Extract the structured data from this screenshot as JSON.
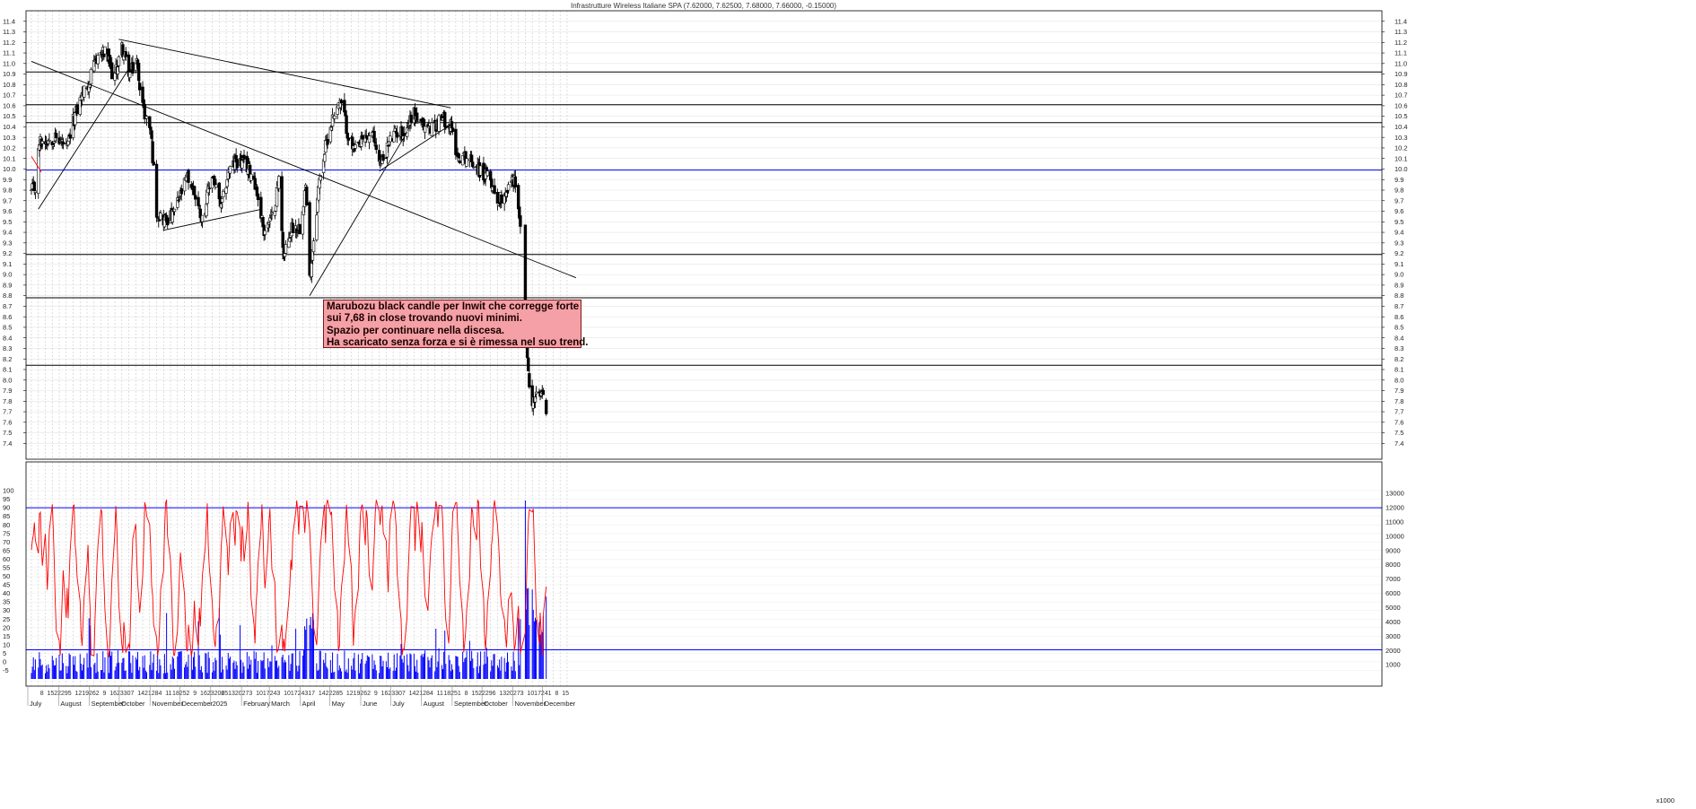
{
  "chart_data": [
    {
      "type": "candlestick",
      "title": "Infrastrutture Wireless Italiane SPA (7.62000, 7.62500, 7.68000, 7.66000, -0.15000)",
      "ylim": [
        7.25,
        11.5
      ],
      "y_ticks": [
        "7.4",
        "7.5",
        "7.6",
        "7.7",
        "7.8",
        "7.9",
        "8.0",
        "8.1",
        "8.2",
        "8.3",
        "8.4",
        "8.5",
        "8.6",
        "8.7",
        "8.8",
        "8.9",
        "9.0",
        "9.1",
        "9.2",
        "9.3",
        "9.4",
        "9.5",
        "9.6",
        "9.7",
        "9.8",
        "9.9",
        "10.0",
        "10.1",
        "10.2",
        "10.3",
        "10.4",
        "10.5",
        "10.6",
        "10.7",
        "10.8",
        "10.9",
        "11.0",
        "11.1",
        "11.2",
        "11.3",
        "11.4"
      ],
      "grid": true,
      "horizontal_levels": [
        {
          "value": 10.92,
          "color": "#000000"
        },
        {
          "value": 10.61,
          "color": "#000000"
        },
        {
          "value": 10.44,
          "color": "#000000"
        },
        {
          "value": 9.99,
          "color": "#0000ff"
        },
        {
          "value": 9.19,
          "color": "#000000"
        },
        {
          "value": 8.78,
          "color": "#000000"
        },
        {
          "value": 8.14,
          "color": "#000000"
        }
      ],
      "trendlines": [
        {
          "from": [
            "2024-07-08",
            9.62
          ],
          "to": [
            "2024-10-07",
            10.95
          ]
        },
        {
          "from": [
            "2024-07-01",
            11.02
          ],
          "to": [
            "2025-12-31",
            8.97
          ]
        },
        {
          "from": [
            "2024-09-27",
            11.23
          ],
          "to": [
            "2025-08-27",
            10.58
          ]
        },
        {
          "from": [
            "2024-11-11",
            9.42
          ],
          "to": [
            "2025-02-18",
            9.62
          ]
        },
        {
          "from": [
            "2025-04-07",
            8.8
          ],
          "to": [
            "2025-07-14",
            10.35
          ]
        },
        {
          "from": [
            "2025-06-16",
            9.98
          ],
          "to": [
            "2025-08-27",
            10.42
          ]
        }
      ],
      "red_segments": [
        {
          "from": [
            "2024-07-01",
            10.12
          ],
          "to": [
            "2024-07-11",
            9.97
          ]
        }
      ],
      "candles": [],
      "annotation": {
        "lines": [
          "Marubozu black candle per Inwit che corregge forte",
          "sui 7,68 in close trovando nuovi minimi.",
          "Spazio per continuare nella discesa.",
          "Ha scaricato senza forza e si è rimessa nel suo trend."
        ],
        "background": "#f4a0a6"
      }
    },
    {
      "type": "line+bar",
      "indicator_ylim": [
        -10,
        105
      ],
      "indicator_ticks": [
        "-5",
        "0",
        "5",
        "10",
        "15",
        "20",
        "25",
        "30",
        "35",
        "40",
        "45",
        "50",
        "55",
        "60",
        "65",
        "70",
        "75",
        "80",
        "85",
        "90",
        "95",
        "100"
      ],
      "indicator_levels": [
        {
          "value": 90,
          "color": "#0000ff"
        },
        {
          "value": 7,
          "color": "#0000ff"
        }
      ],
      "indicator_color": "#ff0000",
      "volume_color": "#0000ff",
      "volume_ylim": [
        0,
        13500
      ],
      "volume_ticks": [
        "1000",
        "2000",
        "3000",
        "4000",
        "5000",
        "6000",
        "7000",
        "8000",
        "9000",
        "10000",
        "11000",
        "12000",
        "13000"
      ],
      "volume_unit_label": "x1000",
      "indicator": [],
      "volume": []
    }
  ],
  "x_axis": {
    "minor_labels": [
      "8",
      "15",
      "22",
      "29",
      "5",
      "12",
      "19",
      "26",
      "2",
      "9",
      "16",
      "23",
      "30",
      "7",
      "14",
      "21",
      "28",
      "4",
      "11",
      "18",
      "25",
      "2",
      "9",
      "16",
      "23",
      "2025",
      "6",
      "13",
      "20",
      "27",
      "3",
      "10",
      "17",
      "24",
      "3",
      "10",
      "17",
      "24",
      "31",
      "7",
      "14",
      "22",
      "28",
      "5",
      "12",
      "19",
      "26",
      "2",
      "9",
      "16",
      "23",
      "30",
      "7",
      "14",
      "21",
      "28",
      "4",
      "11",
      "18",
      "25",
      "1",
      "8",
      "15",
      "22",
      "29",
      "6",
      "13",
      "20",
      "27",
      "3",
      "10",
      "17",
      "24",
      "1",
      "8",
      "15"
    ],
    "month_labels": [
      "July",
      "August",
      "September",
      "October",
      "November",
      "December",
      "2025",
      "February",
      "March",
      "April",
      "May",
      "June",
      "July",
      "August",
      "September",
      "October",
      "November",
      "December"
    ]
  }
}
